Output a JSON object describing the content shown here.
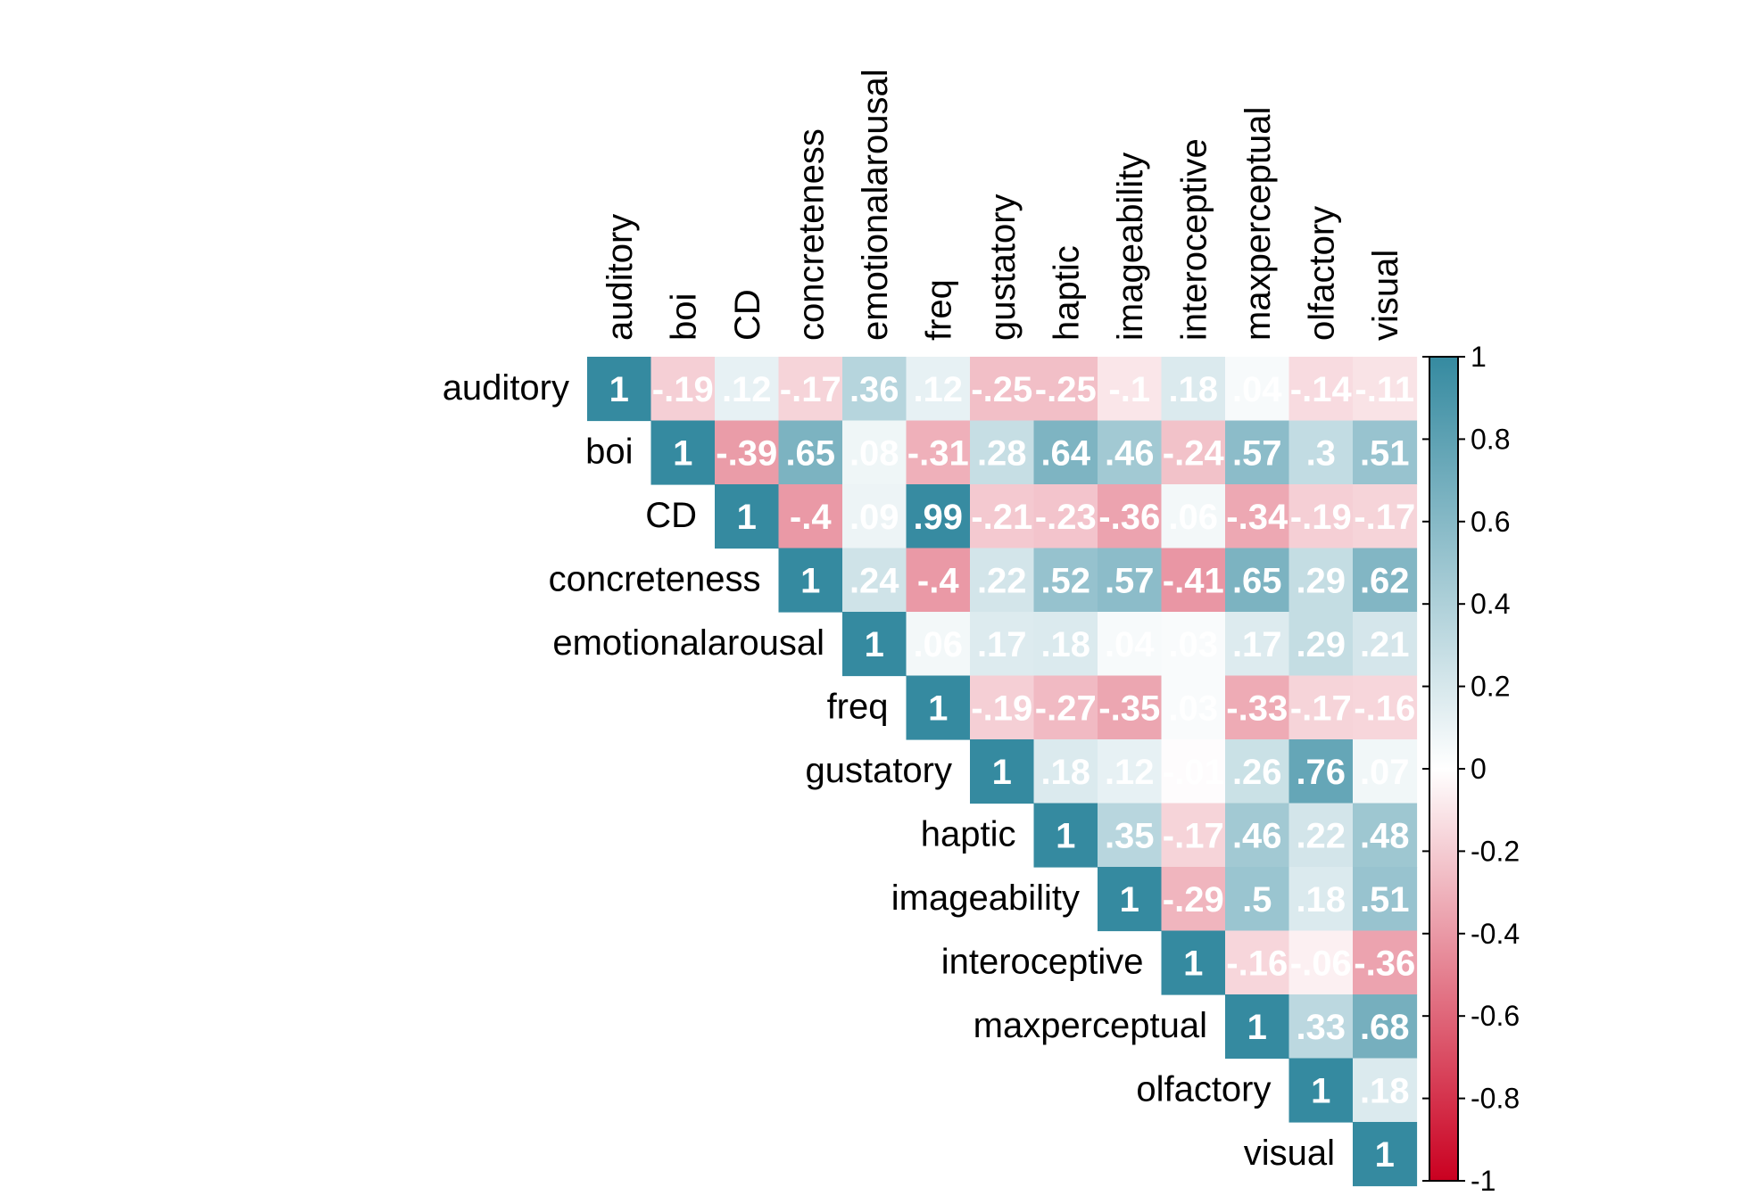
{
  "chart_data": {
    "type": "heatmap",
    "layout": "upper-triangle",
    "variables": [
      "auditory",
      "boi",
      "CD",
      "concreteness",
      "emotionalarousal",
      "freq",
      "gustatory",
      "haptic",
      "imageability",
      "interoceptive",
      "maxperceptual",
      "olfactory",
      "visual"
    ],
    "matrix": [
      [
        1,
        -0.19,
        0.12,
        -0.17,
        0.36,
        0.12,
        -0.25,
        -0.25,
        -0.1,
        0.18,
        0.04,
        -0.14,
        -0.11
      ],
      [
        null,
        1,
        -0.39,
        0.65,
        0.08,
        -0.31,
        0.28,
        0.64,
        0.46,
        -0.24,
        0.57,
        0.3,
        0.51
      ],
      [
        null,
        null,
        1,
        -0.4,
        0.09,
        0.99,
        -0.21,
        -0.23,
        -0.36,
        0.06,
        -0.34,
        -0.19,
        -0.17
      ],
      [
        null,
        null,
        null,
        1,
        0.24,
        -0.4,
        0.22,
        0.52,
        0.57,
        -0.41,
        0.65,
        0.29,
        0.62
      ],
      [
        null,
        null,
        null,
        null,
        1,
        0.06,
        0.17,
        0.18,
        0.04,
        0.03,
        0.17,
        0.29,
        0.21
      ],
      [
        null,
        null,
        null,
        null,
        null,
        1,
        -0.19,
        -0.27,
        -0.35,
        0.03,
        -0.33,
        -0.17,
        -0.16
      ],
      [
        null,
        null,
        null,
        null,
        null,
        null,
        1,
        0.18,
        0.12,
        -0.01,
        0.26,
        0.76,
        0.07
      ],
      [
        null,
        null,
        null,
        null,
        null,
        null,
        null,
        1,
        0.35,
        -0.17,
        0.46,
        0.22,
        0.48
      ],
      [
        null,
        null,
        null,
        null,
        null,
        null,
        null,
        null,
        1,
        -0.29,
        0.5,
        0.18,
        0.51
      ],
      [
        null,
        null,
        null,
        null,
        null,
        null,
        null,
        null,
        null,
        1,
        -0.16,
        -0.06,
        -0.36
      ],
      [
        null,
        null,
        null,
        null,
        null,
        null,
        null,
        null,
        null,
        null,
        1,
        0.33,
        0.68
      ],
      [
        null,
        null,
        null,
        null,
        null,
        null,
        null,
        null,
        null,
        null,
        null,
        1,
        0.18
      ],
      [
        null,
        null,
        null,
        null,
        null,
        null,
        null,
        null,
        null,
        null,
        null,
        null,
        1
      ]
    ],
    "colorbar": {
      "range": [
        -1,
        1
      ],
      "ticks": [
        "1",
        "0.8",
        "0.6",
        "0.4",
        "0.2",
        "0",
        "-0.2",
        "-0.4",
        "-0.6",
        "-0.8",
        "-1"
      ],
      "colors": {
        "negative": "#CA0020",
        "zero": "#FFFFFF",
        "positive": "#358AA0"
      }
    }
  }
}
